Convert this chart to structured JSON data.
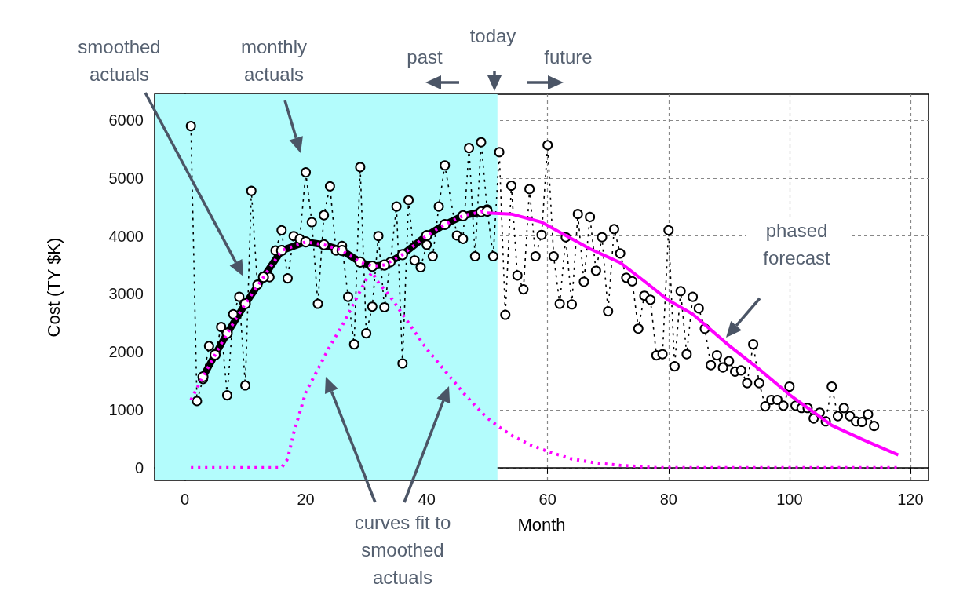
{
  "chart_data": {
    "type": "line",
    "xlabel": "Month",
    "ylabel": "Cost (TY $K)",
    "xlim": [
      -5,
      123
    ],
    "xticks": [
      0,
      20,
      40,
      60,
      80,
      100,
      120
    ],
    "ylim": [
      -220,
      6450
    ],
    "yticks": [
      0,
      1000,
      2000,
      3000,
      4000,
      5000,
      6000
    ],
    "grid": true,
    "bands": [
      {
        "axis": "x",
        "from": -5,
        "to": 51.7,
        "color": "#b3fcfc"
      }
    ],
    "annotations": [
      "smoothed actuals",
      "monthly actuals",
      "past",
      "today",
      "future",
      "curves fit to smoothed actuals",
      "phased forecast"
    ],
    "series": [
      {
        "color": "#000000",
        "marker": "circle",
        "line_style": "dotted",
        "x": [
          1,
          2,
          3,
          4,
          5,
          6,
          7,
          8,
          9,
          10,
          11,
          12,
          13,
          14,
          15,
          16,
          17,
          18,
          19,
          20,
          21,
          22,
          23,
          24,
          25,
          26,
          27,
          28,
          29,
          30,
          31,
          32,
          33,
          34,
          35,
          36,
          37,
          38,
          39,
          40,
          41,
          42,
          43,
          45,
          46,
          47,
          48,
          49,
          50,
          51,
          52,
          53,
          54,
          55,
          56,
          57,
          58,
          59,
          60,
          61,
          62,
          63,
          64,
          65,
          66,
          67,
          68,
          69,
          70,
          71,
          72,
          73,
          74,
          75,
          76,
          77,
          78,
          79,
          80,
          81,
          82,
          83,
          84,
          85,
          86,
          87,
          88,
          89,
          90,
          91,
          92,
          93,
          94,
          95,
          96,
          97,
          98,
          99,
          100,
          101,
          102,
          103,
          104,
          105,
          106,
          107,
          108,
          109,
          110,
          111,
          112,
          113,
          114
        ],
        "values": [
          5900,
          1150,
          1530,
          2100,
          1950,
          2430,
          1250,
          2650,
          2950,
          1420,
          4780,
          3160,
          3300,
          3290,
          3750,
          4100,
          3270,
          4000,
          3950,
          5100,
          4240,
          2830,
          4360,
          4860,
          3750,
          3830,
          2950,
          2130,
          5190,
          2320,
          2780,
          4000,
          2770,
          3550,
          4510,
          1800,
          4620,
          3580,
          3460,
          3850,
          3650,
          4510,
          5220,
          4010,
          3950,
          5520,
          3650,
          5620,
          4460,
          3650,
          5450,
          2640,
          4870,
          3320,
          3080,
          4810,
          3650,
          4020,
          5570,
          3650,
          2830,
          3980,
          2820,
          4380,
          3210,
          4330,
          3400,
          3980,
          2700,
          4120,
          3700,
          3280,
          3220,
          2400,
          2970,
          2900,
          1940,
          1960,
          4100,
          1750,
          3050,
          1960,
          2950,
          2750,
          2400,
          1770,
          1940,
          1730,
          1840,
          1660,
          1680,
          1460,
          2130,
          1460,
          1060,
          1170,
          1170,
          1070,
          1400,
          1070,
          1030,
          1030,
          850,
          950,
          800,
          1400,
          890,
          1030,
          890,
          800,
          790,
          920,
          720
        ]
      },
      {
        "color": "#000000",
        "marker": "circle",
        "line_style": "solid",
        "x": [
          3,
          5,
          7,
          10,
          13,
          16,
          20,
          23,
          26,
          29,
          31,
          33,
          36,
          40,
          43,
          46,
          49,
          50
        ],
        "values": [
          1570,
          1950,
          2320,
          2830,
          3290,
          3750,
          3900,
          3850,
          3750,
          3550,
          3480,
          3500,
          3680,
          4010,
          4200,
          4350,
          4420,
          4430
        ]
      },
      {
        "color": "#ff00ff",
        "marker": "none",
        "line_style": "dotted",
        "x": [
          1,
          3,
          5,
          7,
          10,
          13,
          16,
          20,
          23,
          26,
          29,
          31,
          33,
          36,
          40,
          43,
          46,
          49,
          50
        ],
        "values": [
          1170,
          1570,
          1950,
          2320,
          2830,
          3290,
          3750,
          3900,
          3850,
          3750,
          3550,
          3480,
          3500,
          3680,
          4010,
          4200,
          4350,
          4420,
          4430
        ]
      },
      {
        "color": "#ff00ff",
        "marker": "none",
        "line_style": "dotted",
        "x": [
          1,
          16,
          17,
          18,
          20,
          22,
          24,
          26,
          28,
          30,
          31,
          32,
          34,
          36,
          38,
          40,
          42,
          44,
          46,
          48,
          50,
          52,
          54,
          57,
          60,
          64,
          68,
          72,
          78,
          118
        ],
        "values": [
          0,
          0,
          150,
          600,
          1300,
          1700,
          2100,
          2450,
          2850,
          3250,
          3370,
          3200,
          2950,
          2650,
          2350,
          2050,
          1800,
          1550,
          1300,
          1070,
          860,
          700,
          560,
          400,
          280,
          150,
          80,
          40,
          0,
          0
        ]
      },
      {
        "color": "#ff00ff",
        "marker": "none",
        "line_style": "solid",
        "x": [
          50,
          54,
          59,
          63,
          67,
          72,
          76,
          80,
          84,
          90,
          95,
          100,
          107,
          112,
          118
        ],
        "values": [
          4400,
          4380,
          4240,
          4010,
          3780,
          3540,
          3220,
          2890,
          2650,
          2110,
          1700,
          1260,
          730,
          490,
          220
        ]
      }
    ]
  }
}
